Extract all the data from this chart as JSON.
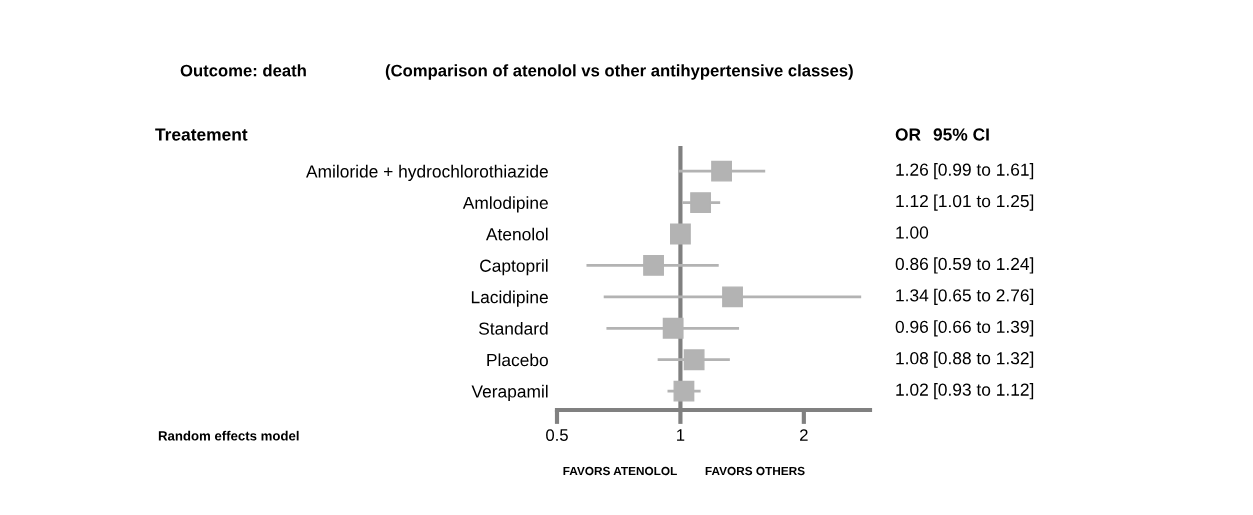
{
  "chart_data": {
    "type": "scatter",
    "orientation": "horizontal",
    "title": "Outcome: death",
    "subtitle": "(Comparison of atenolol vs other antihypertensive classes)",
    "categories": [
      "Amiloride + hydrochlorothiazide",
      "Amlodipine",
      "Atenolol",
      "Captopril",
      "Lacidipine",
      "Standard",
      "Placebo",
      "Verapamil"
    ],
    "values": [
      1.26,
      1.12,
      1.0,
      0.86,
      1.34,
      0.96,
      1.08,
      1.02
    ],
    "errors": [
      [
        0.99,
        1.61
      ],
      [
        1.01,
        1.25
      ],
      null,
      [
        0.59,
        1.24
      ],
      [
        0.65,
        2.76
      ],
      [
        0.66,
        1.39
      ],
      [
        0.88,
        1.32
      ],
      [
        0.93,
        1.12
      ]
    ],
    "value_labels": [
      "1.26",
      "1.12",
      "1.00",
      "0.86",
      "1.34",
      "0.96",
      "1.08",
      "1.02"
    ],
    "color": "#b3b3b3",
    "marker": "square",
    "log": "x",
    "xlim": [
      0.5,
      2.9
    ],
    "xticks": [
      0.5,
      1,
      2
    ],
    "grid": false,
    "legend": false,
    "ref_lines": [
      {
        "axis": "x",
        "value": 1,
        "color": "#808080"
      }
    ],
    "annotations": [
      "Treatement",
      "OR",
      "95% CI",
      "[0.99 to 1.61]",
      "[1.01 to 1.25]",
      "[0.59 to 1.24]",
      "[0.65 to 2.76]",
      "[0.66 to 1.39]",
      "[0.88 to 1.32]",
      "[0.93 to 1.12]",
      "Random effects model",
      "FAVORS ATENOLOL",
      "FAVORS OTHERS"
    ]
  }
}
